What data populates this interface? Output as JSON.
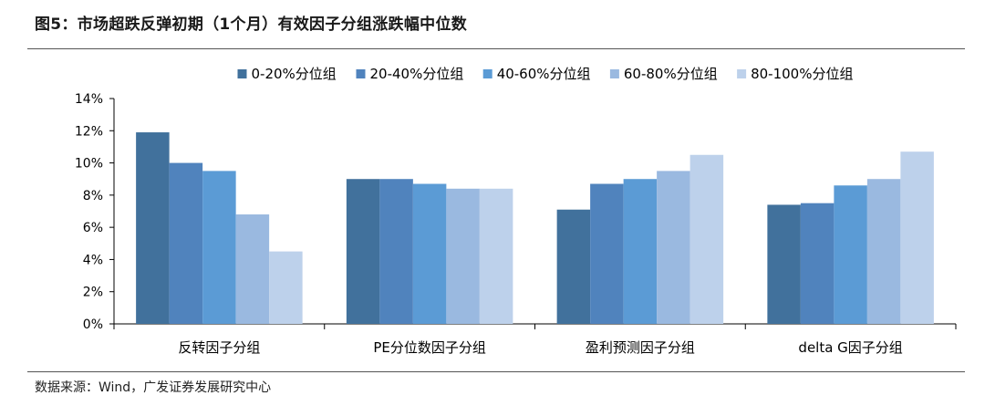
{
  "header": {
    "title": "图5：市场超跌反弹初期（1个月）有效因子分组涨跌幅中位数"
  },
  "footer": {
    "source": "数据来源：Wind，广发证券发展研究中心"
  },
  "chart_data": {
    "type": "bar",
    "title": "图5：市场超跌反弹初期（1个月）有效因子分组涨跌幅中位数",
    "xlabel": "",
    "ylabel": "",
    "categories": [
      "反转因子分组",
      "PE分位数因子分组",
      "盈利预测因子分组",
      "delta G因子分组"
    ],
    "series": [
      {
        "name": "0-20%分位组",
        "color": "#41719c",
        "values": [
          11.9,
          9.0,
          7.1,
          7.4
        ]
      },
      {
        "name": "20-40%分位组",
        "color": "#5083bd",
        "values": [
          10.0,
          9.0,
          8.7,
          7.5
        ]
      },
      {
        "name": "40-60%分位组",
        "color": "#5b9bd5",
        "values": [
          9.5,
          8.7,
          9.0,
          8.6
        ]
      },
      {
        "name": "60-80%分位组",
        "color": "#9ab9e0",
        "values": [
          6.8,
          8.4,
          9.5,
          9.0
        ]
      },
      {
        "name": "80-100%分位组",
        "color": "#bdd1eb",
        "values": [
          4.5,
          8.4,
          10.5,
          10.7
        ]
      }
    ],
    "ylim": [
      0,
      14
    ],
    "yticks": [
      "0%",
      "2%",
      "4%",
      "6%",
      "8%",
      "10%",
      "12%",
      "14%"
    ],
    "grid": false,
    "legend_position": "top"
  }
}
